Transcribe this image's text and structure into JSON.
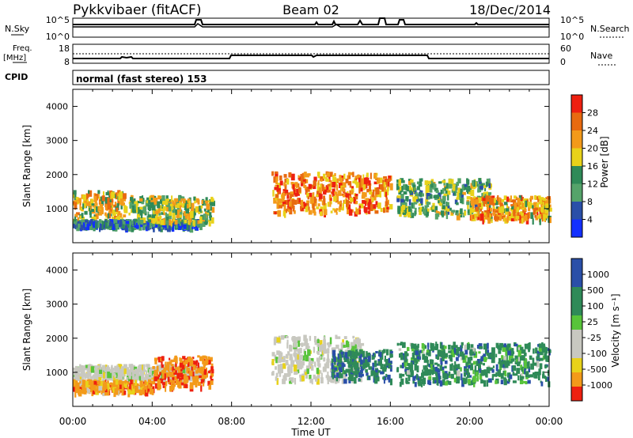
{
  "header": {
    "station": "Pykkvibaer (fitACF)",
    "beam": "Beam 02",
    "date": "18/Dec/2014"
  },
  "panels": {
    "nsky": {
      "left_label": "N.Sky",
      "left_ticks": [
        "10^5",
        "10^0"
      ],
      "right_ticks": [
        "10^5",
        "10^0"
      ],
      "right_label": "N.Search"
    },
    "freq": {
      "left_label_line1": "Freq.",
      "left_label_line2": "[MHz]",
      "left_ticks": [
        "18",
        "8"
      ],
      "right_ticks": [
        "60",
        "0"
      ],
      "right_label": "Nave"
    },
    "cpid": {
      "label": "CPID",
      "program": "normal (fast stereo) 153"
    }
  },
  "colors": {
    "dark_blue": "#2a4fa8",
    "blue": "#1330ff",
    "dark_green": "#2f8a58",
    "green": "#55a36a",
    "light_green": "#58c43a",
    "gray": "#c8c8c0",
    "yellow": "#e8d21a",
    "orange": "#f39a1a",
    "dark_orange": "#e86a10",
    "red": "#ee2010"
  },
  "chart_data": [
    {
      "type": "heatmap",
      "title": "",
      "ylabel": "Slant Range [km]",
      "xlabel": "",
      "x_ticks": [
        "00:00",
        "04:00",
        "08:00",
        "12:00",
        "16:00",
        "20:00",
        "00:00"
      ],
      "y_ticks": [
        "1000",
        "2000",
        "3000",
        "4000"
      ],
      "ylim": [
        0,
        4500
      ],
      "colorbar": {
        "label": "Power [dB]",
        "ticks": [
          "4",
          "8",
          "12",
          "16",
          "20",
          "24",
          "28"
        ],
        "range": [
          0,
          32
        ]
      },
      "bands": [
        {
          "t0": 0.0,
          "t1": 2.6,
          "r0": 700,
          "r1": 1550,
          "value": 20
        },
        {
          "t0": 0.0,
          "t1": 6.4,
          "r0": 500,
          "r1": 700,
          "value": 8
        },
        {
          "t0": 2.8,
          "t1": 7.0,
          "r0": 650,
          "r1": 1400,
          "value": 16
        },
        {
          "t0": 10.0,
          "t1": 16.0,
          "r0": 900,
          "r1": 2100,
          "value": 24
        },
        {
          "t0": 16.3,
          "t1": 21.0,
          "r0": 850,
          "r1": 1900,
          "value": 14
        },
        {
          "t0": 20.0,
          "t1": 24.0,
          "r0": 700,
          "r1": 1400,
          "value": 22
        }
      ]
    },
    {
      "type": "heatmap",
      "title": "",
      "ylabel": "Slant Range [km]",
      "xlabel": "Time UT",
      "x_ticks": [
        "00:00",
        "04:00",
        "08:00",
        "12:00",
        "16:00",
        "20:00",
        "00:00"
      ],
      "y_ticks": [
        "1000",
        "2000",
        "3000",
        "4000"
      ],
      "ylim": [
        0,
        4500
      ],
      "colorbar": {
        "label": "Velocity [m s⁻¹]",
        "ticks": [
          "1000",
          "500",
          "100",
          "25",
          "-25",
          "-100",
          "-500",
          "-1000"
        ],
        "range": [
          -1000,
          1000
        ]
      },
      "bands": [
        {
          "t0": 0.0,
          "t1": 6.5,
          "r0": 850,
          "r1": 1250,
          "value": 0
        },
        {
          "t0": 0.0,
          "t1": 4.0,
          "r0": 450,
          "r1": 800,
          "value": -300
        },
        {
          "t0": 4.0,
          "t1": 7.0,
          "r0": 600,
          "r1": 1500,
          "value": -400
        },
        {
          "t0": 10.0,
          "t1": 14.5,
          "r0": 800,
          "r1": 2100,
          "value": 0
        },
        {
          "t0": 13.0,
          "t1": 16.0,
          "r0": 800,
          "r1": 1700,
          "value": 400
        },
        {
          "t0": 16.3,
          "t1": 24.0,
          "r0": 700,
          "r1": 1900,
          "value": 300
        }
      ]
    }
  ]
}
